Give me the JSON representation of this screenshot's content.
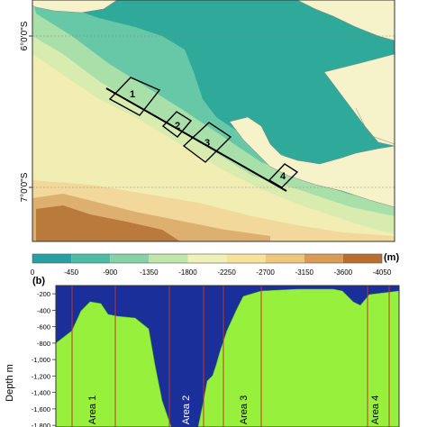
{
  "map": {
    "lat_labels": [
      "6°0'0\"S",
      "7°0'0\"S"
    ],
    "areas": [
      {
        "label": "1"
      },
      {
        "label": "2"
      },
      {
        "label": "3"
      },
      {
        "label": "4"
      }
    ],
    "colors": {
      "land": "#f6f2c9",
      "shelf": "#2fa99a",
      "slope": "#66c8a6",
      "mid": "#a9dfa9",
      "deep1": "#f2edb2",
      "deep2": "#f2d89a",
      "deep3": "#ddb070",
      "deep4": "#b97a3c"
    }
  },
  "legend": {
    "unit": "(m)",
    "ticks": [
      "0",
      "-450",
      "-900",
      "-1350",
      "-1800",
      "-2250",
      "-2700",
      "-3150",
      "-3600",
      "-4050"
    ],
    "colors": [
      "#24a1a0",
      "#4fbba2",
      "#88d1a6",
      "#bfe6aa",
      "#eef1b8",
      "#f6e29d",
      "#eec67d",
      "#d79d58",
      "#b86e31"
    ]
  },
  "profile": {
    "panel_label": "(b)",
    "ylabel": "Depth m",
    "yticks": [
      "-200",
      "-400",
      "-600",
      "-800",
      "-1,000",
      "-1,200",
      "-1,400",
      "-1,600",
      "-1,800"
    ],
    "areas": [
      "Area 1",
      "Area 2",
      "Area 3",
      "Area 4"
    ],
    "colors": {
      "water": "#1a2f9a",
      "ground": "#96f03c",
      "boundary": "#c0392b"
    }
  }
}
